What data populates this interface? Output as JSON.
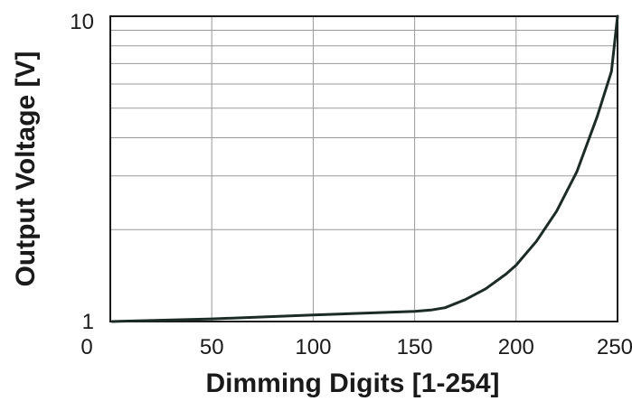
{
  "chart_data": {
    "type": "line",
    "title": "",
    "xlabel": "Dimming Digits [1-254]",
    "ylabel": "Output Voltage [V]",
    "xlim": [
      0,
      250
    ],
    "ylim": [
      1,
      10
    ],
    "y_scale": "log",
    "grid": true,
    "x_ticks": [
      {
        "value": 0,
        "label": "0"
      },
      {
        "value": 50,
        "label": "50"
      },
      {
        "value": 100,
        "label": "100"
      },
      {
        "value": 150,
        "label": "150"
      },
      {
        "value": 200,
        "label": "200"
      },
      {
        "value": 250,
        "label": "250"
      }
    ],
    "y_ticks": [
      {
        "value": 1,
        "label": "1"
      },
      {
        "value": 10,
        "label": "10"
      }
    ],
    "series": [
      {
        "color": "#1c2b26",
        "x": [
          1,
          50,
          100,
          150,
          158,
          165,
          175,
          185,
          195,
          200,
          210,
          220,
          230,
          240,
          247,
          254
        ],
        "y": [
          1.0,
          1.02,
          1.05,
          1.08,
          1.09,
          1.11,
          1.18,
          1.28,
          1.43,
          1.53,
          1.83,
          2.3,
          3.1,
          4.7,
          6.6,
          10.0
        ]
      }
    ]
  }
}
